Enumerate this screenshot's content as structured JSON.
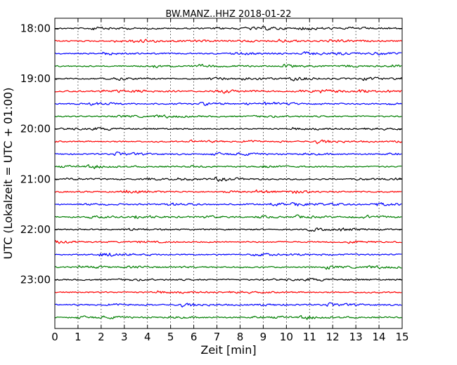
{
  "chart_data": {
    "type": "line",
    "title": "BW.MANZ..HHZ 2018-01-22",
    "xlabel": "Zeit  [min]",
    "ylabel": "UTC (Lokalzeit = UTC + 01:00)",
    "xlim": [
      0,
      15
    ],
    "x_ticks": [
      "0",
      "1",
      "2",
      "3",
      "4",
      "5",
      "6",
      "7",
      "8",
      "9",
      "10",
      "11",
      "12",
      "13",
      "14",
      "15"
    ],
    "y_tick_labels": [
      "18:00",
      "19:00",
      "20:00",
      "21:00",
      "22:00",
      "23:00"
    ],
    "grid": "vertical dotted",
    "trace_count": 24,
    "trace_interval_minutes": 15,
    "trace_start": "18:00",
    "trace_colors": [
      "#000000",
      "#ff0000",
      "#0000ff",
      "#007f00"
    ]
  }
}
